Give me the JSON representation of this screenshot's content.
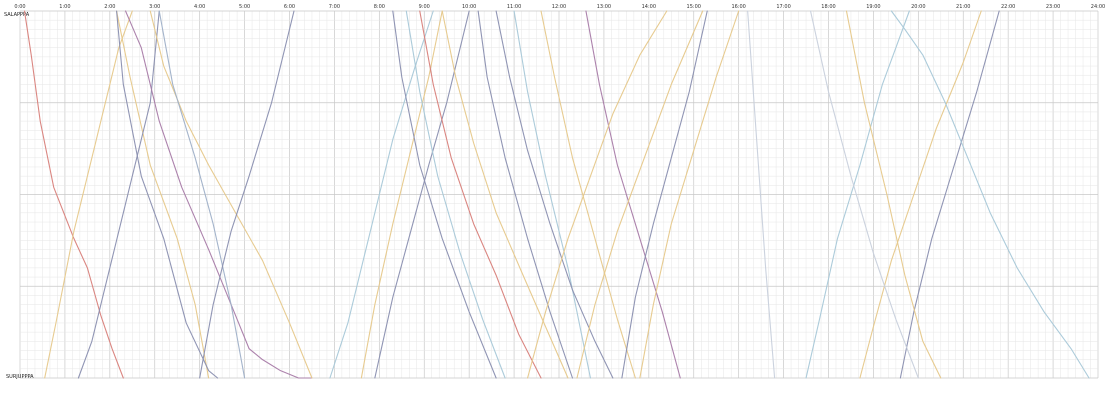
{
  "chart_data": {
    "type": "line",
    "title": "",
    "xlabel": "",
    "ylabel": "",
    "x_unit": "hour",
    "xlim": [
      0,
      24
    ],
    "x_ticks": [
      {
        "value": 0,
        "label": "0:00"
      },
      {
        "value": 1,
        "label": "1:00"
      },
      {
        "value": 2,
        "label": "2:00"
      },
      {
        "value": 3,
        "label": "3:00"
      },
      {
        "value": 4,
        "label": "4:00"
      },
      {
        "value": 5,
        "label": "5:00"
      },
      {
        "value": 6,
        "label": "6:00"
      },
      {
        "value": 7,
        "label": "7:00"
      },
      {
        "value": 8,
        "label": "8:00"
      },
      {
        "value": 9,
        "label": "9:00"
      },
      {
        "value": 10,
        "label": "10:00"
      },
      {
        "value": 11,
        "label": "11:00"
      },
      {
        "value": 12,
        "label": "12:00"
      },
      {
        "value": 13,
        "label": "13:00"
      },
      {
        "value": 14,
        "label": "14:00"
      },
      {
        "value": 15,
        "label": "15:00"
      },
      {
        "value": 16,
        "label": "16:00"
      },
      {
        "value": 17,
        "label": "17:00"
      },
      {
        "value": 18,
        "label": "18:00"
      },
      {
        "value": 19,
        "label": "19:00"
      },
      {
        "value": 20,
        "label": "20:00"
      },
      {
        "value": 21,
        "label": "21:00"
      },
      {
        "value": 22,
        "label": "22:00"
      },
      {
        "value": 23,
        "label": "23:00"
      },
      {
        "value": 24,
        "label": "24:00"
      }
    ],
    "stations": {
      "top": "SALAPPPA",
      "bottom": "SURJUPPPA"
    },
    "ylim": [
      0,
      1
    ],
    "grid": true,
    "legend": "none",
    "series": [
      {
        "color": "#d8807a",
        "x": [
          0.1,
          0.25,
          0.45,
          0.75,
          1.2,
          1.5,
          1.8,
          2.05,
          2.3
        ],
        "y": [
          0.0,
          0.12,
          0.3,
          0.48,
          0.62,
          0.7,
          0.83,
          0.92,
          1.0
        ]
      },
      {
        "color": "#e6c88a",
        "x": [
          0.55,
          0.8,
          1.2,
          1.7,
          2.2,
          2.5
        ],
        "y": [
          1.0,
          0.85,
          0.6,
          0.35,
          0.1,
          0.0
        ]
      },
      {
        "color": "#e6c88a",
        "x": [
          2.15,
          2.45,
          2.9,
          3.5,
          3.9,
          4.2
        ],
        "y": [
          0.0,
          0.18,
          0.42,
          0.62,
          0.8,
          1.0
        ]
      },
      {
        "color": "#8a8fb0",
        "x": [
          2.15,
          2.3,
          2.7,
          3.2,
          3.7,
          4.2,
          4.4
        ],
        "y": [
          0.0,
          0.2,
          0.45,
          0.62,
          0.85,
          0.98,
          1.0
        ]
      },
      {
        "color": "#8a8fb0",
        "x": [
          1.3,
          1.6,
          2.0,
          2.4,
          2.9,
          3.1
        ],
        "y": [
          1.0,
          0.9,
          0.7,
          0.5,
          0.25,
          0.0
        ]
      },
      {
        "color": "#a87ba8",
        "x": [
          2.35,
          2.7,
          3.1,
          3.6,
          4.2,
          4.7,
          5.1
        ],
        "y": [
          0.0,
          0.1,
          0.3,
          0.48,
          0.65,
          0.8,
          0.92
        ]
      },
      {
        "color": "#a87ba8",
        "x": [
          5.1,
          5.4,
          5.8,
          6.2,
          6.5
        ],
        "y": [
          0.92,
          0.95,
          0.98,
          1.0,
          1.0
        ]
      },
      {
        "color": "#e6c88a",
        "x": [
          2.9,
          3.2,
          3.7,
          4.2,
          4.8,
          5.4,
          6.0,
          6.5
        ],
        "y": [
          0.0,
          0.15,
          0.3,
          0.42,
          0.55,
          0.68,
          0.85,
          1.0
        ]
      },
      {
        "color": "#9fb0c8",
        "x": [
          3.1,
          3.4,
          3.9,
          4.3,
          4.7,
          5.0
        ],
        "y": [
          0.0,
          0.2,
          0.4,
          0.58,
          0.8,
          1.0
        ]
      },
      {
        "color": "#8a8fb0",
        "x": [
          4.0,
          4.3,
          4.7,
          5.1,
          5.6,
          6.1
        ],
        "y": [
          1.0,
          0.8,
          0.6,
          0.45,
          0.25,
          0.0
        ]
      },
      {
        "color": "#a8c8d8",
        "x": [
          6.9,
          7.3,
          7.8,
          8.3,
          8.8,
          9.2
        ],
        "y": [
          1.0,
          0.85,
          0.6,
          0.35,
          0.15,
          0.0
        ]
      },
      {
        "color": "#e6c88a",
        "x": [
          7.6,
          7.9,
          8.3,
          8.7,
          9.1,
          9.4
        ],
        "y": [
          1.0,
          0.8,
          0.58,
          0.38,
          0.18,
          0.0
        ]
      },
      {
        "color": "#8a8fb0",
        "x": [
          7.9,
          8.3,
          8.7,
          9.1,
          9.5,
          10.0
        ],
        "y": [
          1.0,
          0.78,
          0.6,
          0.42,
          0.25,
          0.0
        ]
      },
      {
        "color": "#8a8fb0",
        "x": [
          8.3,
          8.5,
          8.9,
          9.4,
          10.0,
          10.6
        ],
        "y": [
          0.0,
          0.18,
          0.42,
          0.62,
          0.82,
          1.0
        ]
      },
      {
        "color": "#a8c8d8",
        "x": [
          8.6,
          8.9,
          9.3,
          9.8,
          10.3,
          10.8
        ],
        "y": [
          0.0,
          0.22,
          0.45,
          0.66,
          0.84,
          1.0
        ]
      },
      {
        "color": "#d8807a",
        "x": [
          8.9,
          9.2,
          9.6,
          10.1,
          10.6,
          11.1,
          11.6
        ],
        "y": [
          0.0,
          0.2,
          0.4,
          0.58,
          0.72,
          0.88,
          1.0
        ]
      },
      {
        "color": "#e6c88a",
        "x": [
          9.4,
          9.7,
          10.1,
          10.6,
          11.2,
          11.7,
          12.2
        ],
        "y": [
          0.0,
          0.18,
          0.36,
          0.55,
          0.72,
          0.86,
          1.0
        ]
      },
      {
        "color": "#8a8fb0",
        "x": [
          10.2,
          10.4,
          10.8,
          11.3,
          11.8,
          12.3
        ],
        "y": [
          0.0,
          0.18,
          0.4,
          0.62,
          0.82,
          1.0
        ]
      },
      {
        "color": "#a8c8d8",
        "x": [
          11.0,
          11.3,
          11.7,
          12.2,
          12.7
        ],
        "y": [
          0.0,
          0.22,
          0.45,
          0.7,
          1.0
        ]
      },
      {
        "color": "#8a8fb0",
        "x": [
          10.6,
          10.9,
          11.3,
          11.8,
          12.3,
          12.8,
          13.2
        ],
        "y": [
          0.0,
          0.18,
          0.38,
          0.58,
          0.76,
          0.9,
          1.0
        ]
      },
      {
        "color": "#e6c88a",
        "x": [
          11.6,
          11.9,
          12.3,
          12.8,
          13.3,
          13.7
        ],
        "y": [
          0.0,
          0.18,
          0.4,
          0.62,
          0.84,
          1.0
        ]
      },
      {
        "color": "#a87ba8",
        "x": [
          12.6,
          12.9,
          13.3,
          13.8,
          14.3,
          14.7
        ],
        "y": [
          0.0,
          0.2,
          0.42,
          0.62,
          0.82,
          1.0
        ]
      },
      {
        "color": "#e6c88a",
        "x": [
          11.3,
          11.7,
          12.2,
          12.7,
          13.2,
          13.8,
          14.4
        ],
        "y": [
          1.0,
          0.82,
          0.62,
          0.45,
          0.28,
          0.12,
          0.0
        ]
      },
      {
        "color": "#e6c88a",
        "x": [
          12.4,
          12.8,
          13.3,
          13.9,
          14.5,
          15.2
        ],
        "y": [
          1.0,
          0.8,
          0.6,
          0.4,
          0.2,
          0.0
        ]
      },
      {
        "color": "#8a8fb0",
        "x": [
          13.4,
          13.7,
          14.1,
          14.5,
          14.9,
          15.3
        ],
        "y": [
          1.0,
          0.78,
          0.58,
          0.4,
          0.22,
          0.0
        ]
      },
      {
        "color": "#e6c88a",
        "x": [
          13.8,
          14.1,
          14.5,
          15.0,
          15.5,
          16.0
        ],
        "y": [
          1.0,
          0.8,
          0.58,
          0.38,
          0.18,
          0.0
        ]
      },
      {
        "color": "#a8c8d8",
        "x": [
          17.5,
          17.8,
          18.2,
          18.7,
          19.2,
          19.8
        ],
        "y": [
          1.0,
          0.84,
          0.62,
          0.42,
          0.2,
          0.0
        ]
      },
      {
        "color": "#e6c88a",
        "x": [
          18.7,
          19.0,
          19.4,
          19.9,
          20.4,
          21.0,
          21.4
        ],
        "y": [
          1.0,
          0.86,
          0.68,
          0.5,
          0.32,
          0.14,
          0.0
        ]
      },
      {
        "color": "#8a8fb0",
        "x": [
          19.6,
          19.9,
          20.3,
          20.8,
          21.3,
          21.8
        ],
        "y": [
          1.0,
          0.82,
          0.62,
          0.42,
          0.22,
          0.0
        ]
      },
      {
        "color": "#a8c8d8",
        "x": [
          19.4,
          19.7,
          20.1,
          20.6,
          21.1,
          21.6,
          22.2,
          22.8,
          23.4,
          23.8
        ],
        "y": [
          0.0,
          0.05,
          0.12,
          0.25,
          0.4,
          0.55,
          0.7,
          0.82,
          0.92,
          1.0
        ]
      },
      {
        "color": "#e6c88a",
        "x": [
          18.4,
          18.8,
          19.3,
          19.7,
          20.1,
          20.5
        ],
        "y": [
          0.0,
          0.25,
          0.5,
          0.72,
          0.9,
          1.0
        ]
      },
      {
        "color": "#c8d0dc",
        "x": [
          17.6,
          18.0,
          18.5,
          19.0,
          19.5,
          20.0
        ],
        "y": [
          0.0,
          0.22,
          0.45,
          0.66,
          0.84,
          1.0
        ]
      },
      {
        "color": "#c8d0dc",
        "x": [
          16.2,
          16.4,
          16.6,
          16.8
        ],
        "y": [
          0.0,
          0.35,
          0.7,
          1.0
        ]
      }
    ]
  }
}
